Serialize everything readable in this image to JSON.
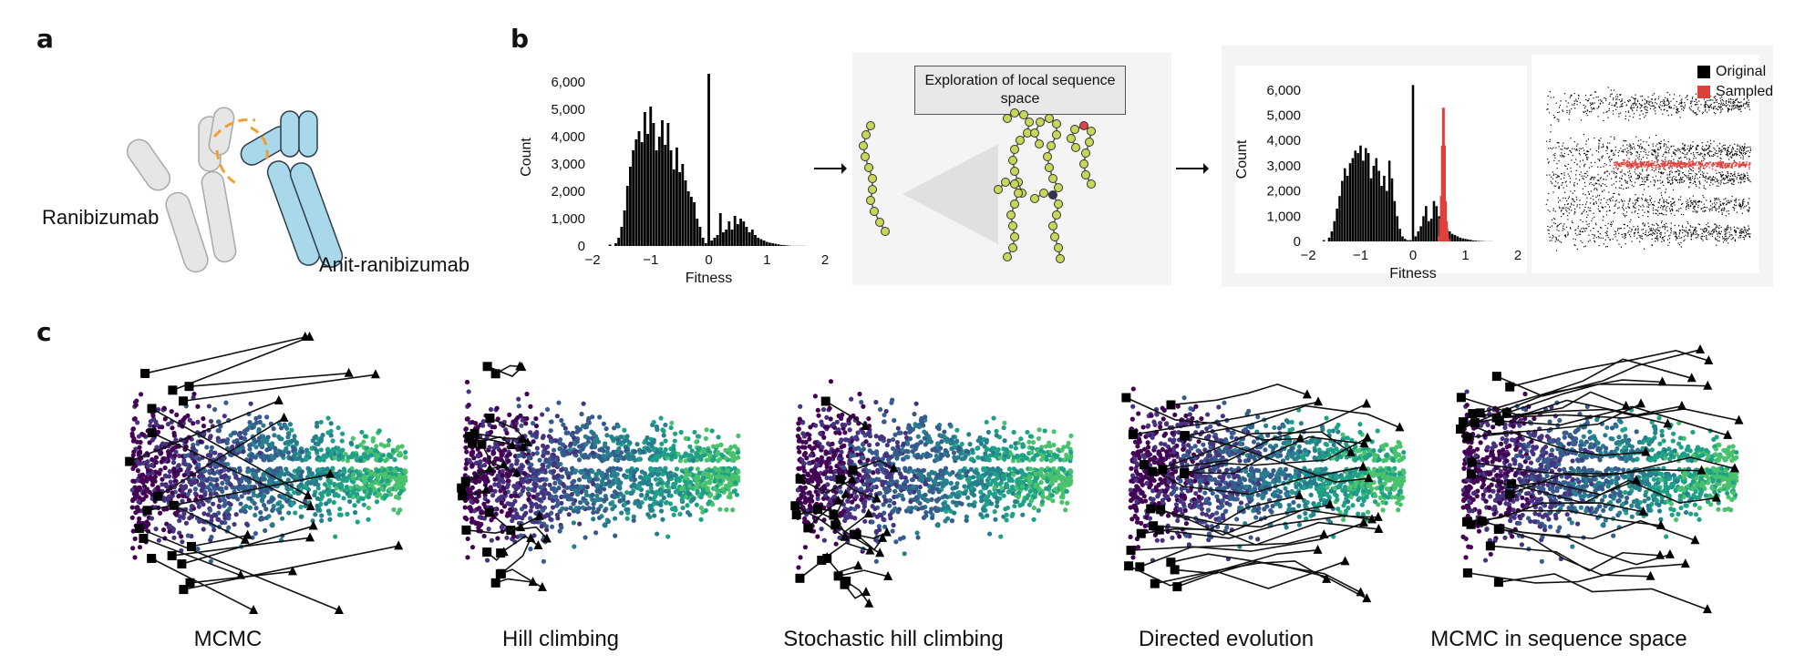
{
  "panel_labels": {
    "a": "a",
    "b": "b",
    "c": "c"
  },
  "panel_a": {
    "left_label": "Ranibizumab",
    "right_label": "Anit-ranibizumab",
    "colors": {
      "ranibizumab": "#e8e8e8",
      "anti": "#a8d8ea",
      "interface": "#f0a030"
    }
  },
  "panel_b": {
    "exploration_label": "Exploration of local sequence space",
    "legend": {
      "original": "Original",
      "sampled": "Sampled"
    },
    "colors": {
      "original": "#000000",
      "sampled": "#e0403a",
      "bead": "#c8d65a"
    }
  },
  "panel_c": {
    "methods": [
      "MCMC",
      "Hill climbing",
      "Stochastic hill climbing",
      "Directed evolution",
      "MCMC in sequence space"
    ],
    "colormap": "viridis",
    "start_marker": "square",
    "end_marker": "triangle"
  },
  "chart_data": [
    {
      "type": "bar",
      "title": "",
      "xlabel": "Fitness",
      "ylabel": "Count",
      "xlim": [
        -2,
        2
      ],
      "ylim": [
        0,
        6500
      ],
      "xticks": [
        "−2",
        "−1",
        "0",
        "1",
        "2"
      ],
      "yticks": [
        "0",
        "1,000",
        "2,000",
        "3,000",
        "4,000",
        "5,000",
        "6,000"
      ],
      "series": [
        {
          "x": [
            -1.7,
            -1.6,
            -1.55,
            -1.5,
            -1.45,
            -1.4,
            -1.35,
            -1.3,
            -1.25,
            -1.2,
            -1.15,
            -1.1,
            -1.05,
            -1.0,
            -0.95,
            -0.9,
            -0.85,
            -0.8,
            -0.75,
            -0.7,
            -0.65,
            -0.6,
            -0.55,
            -0.5,
            -0.45,
            -0.4,
            -0.35,
            -0.3,
            -0.25,
            -0.2,
            -0.15,
            -0.1,
            -0.05,
            0.0,
            0.05,
            0.1,
            0.15,
            0.2,
            0.25,
            0.3,
            0.35,
            0.4,
            0.45,
            0.5,
            0.55,
            0.6,
            0.65,
            0.7,
            0.75,
            0.8,
            0.85,
            0.9,
            0.95,
            1.0,
            1.05,
            1.1,
            1.15,
            1.2,
            1.25,
            1.3,
            1.35,
            1.4,
            1.45,
            1.5,
            1.55,
            1.6,
            1.65
          ],
          "values": [
            50,
            100,
            300,
            700,
            1300,
            2200,
            2900,
            3500,
            3900,
            4200,
            3800,
            4900,
            4100,
            5100,
            4500,
            3500,
            4000,
            4600,
            3700,
            4500,
            3500,
            2800,
            3600,
            2700,
            3000,
            2400,
            2000,
            1800,
            1600,
            1000,
            700,
            300,
            100,
            6300,
            200,
            300,
            400,
            1200,
            500,
            600,
            900,
            600,
            1100,
            800,
            1000,
            900,
            700,
            500,
            600,
            400,
            300,
            250,
            200,
            150,
            120,
            100,
            80,
            60,
            40,
            30,
            20,
            10,
            5,
            5,
            5,
            5,
            5
          ]
        }
      ]
    },
    {
      "type": "bar",
      "title": "",
      "xlabel": "Fitness",
      "ylabel": "Count",
      "xlim": [
        -2,
        2
      ],
      "ylim": [
        0,
        6500
      ],
      "xticks": [
        "−2",
        "−1",
        "0",
        "1",
        "2"
      ],
      "yticks": [
        "0",
        "1,000",
        "2,000",
        "3,000",
        "4,000",
        "5,000",
        "6,000"
      ],
      "series": [
        {
          "name": "Original",
          "x": [
            -1.7,
            -1.6,
            -1.55,
            -1.5,
            -1.45,
            -1.4,
            -1.35,
            -1.3,
            -1.25,
            -1.2,
            -1.15,
            -1.1,
            -1.05,
            -1.0,
            -0.95,
            -0.9,
            -0.85,
            -0.8,
            -0.75,
            -0.7,
            -0.65,
            -0.6,
            -0.55,
            -0.5,
            -0.45,
            -0.4,
            -0.35,
            -0.3,
            -0.25,
            -0.2,
            -0.15,
            -0.1,
            -0.05,
            0.0,
            0.05,
            0.1,
            0.15,
            0.2,
            0.25,
            0.3,
            0.35,
            0.4,
            0.45,
            0.5,
            0.55,
            0.6,
            0.65,
            0.7,
            0.75,
            0.8,
            0.85,
            0.9,
            0.95,
            1.0,
            1.05,
            1.1,
            1.15,
            1.2,
            1.25,
            1.3,
            1.35,
            1.4,
            1.45,
            1.5
          ],
          "values": [
            50,
            150,
            400,
            800,
            1300,
            1800,
            2400,
            2900,
            2600,
            3100,
            3300,
            3600,
            3500,
            3800,
            3200,
            3700,
            3500,
            2500,
            3000,
            3300,
            2800,
            2200,
            2600,
            2000,
            3200,
            2500,
            1600,
            1000,
            500,
            200,
            100,
            50,
            50,
            6200,
            200,
            400,
            600,
            1000,
            1400,
            800,
            900,
            1600,
            1400,
            1000,
            800,
            600,
            500,
            400,
            300,
            250,
            200,
            150,
            120,
            100,
            80,
            60,
            40,
            30,
            20,
            15,
            10,
            5,
            5,
            5
          ]
        },
        {
          "name": "Sampled",
          "x": [
            0.5,
            0.52,
            0.54,
            0.56,
            0.58,
            0.6,
            0.62,
            0.64,
            0.66,
            0.68
          ],
          "values": [
            200,
            900,
            1800,
            3800,
            5300,
            3800,
            1600,
            800,
            300,
            100
          ]
        }
      ]
    },
    {
      "type": "scatter",
      "title": "",
      "legend": [
        "Original",
        "Sampled"
      ],
      "legend_placement": "top-right",
      "note": "embedding of sequences; sampled points concentrated in one band"
    }
  ]
}
